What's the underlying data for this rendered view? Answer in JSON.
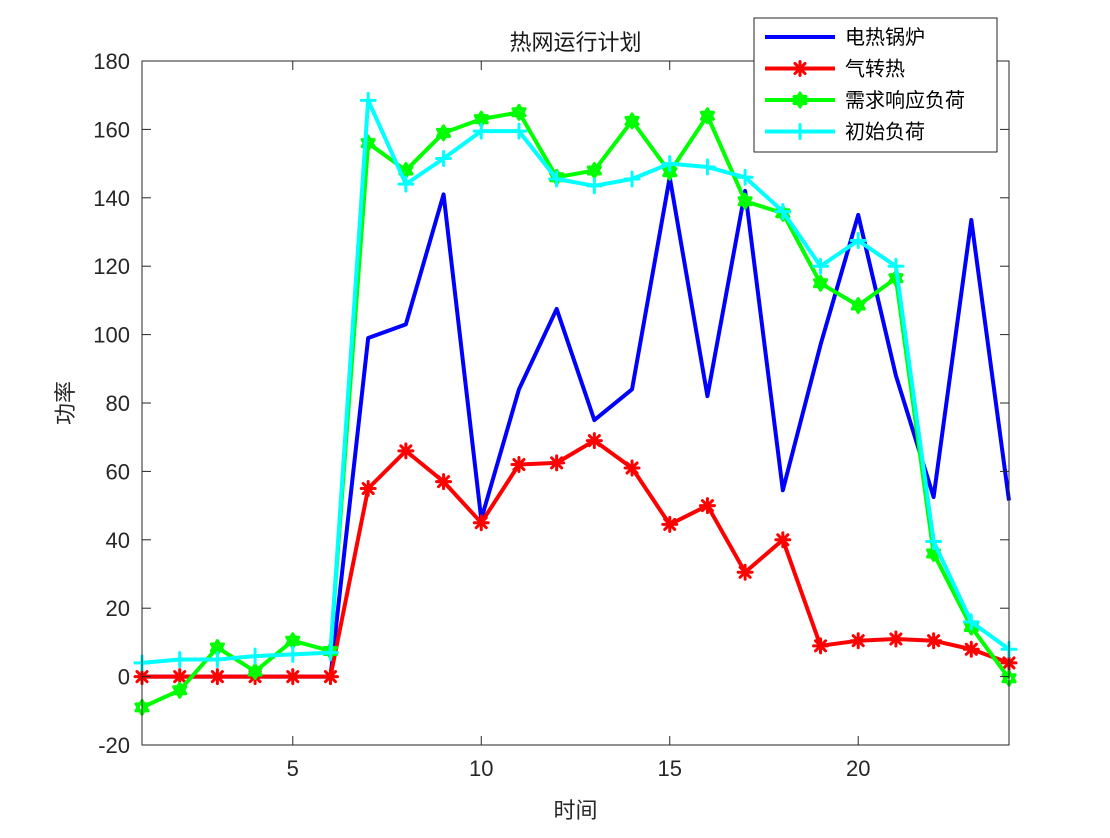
{
  "chart_data": {
    "type": "line",
    "title": "热网运行计划",
    "xlabel": "时间",
    "ylabel": "功率",
    "xlim": [
      1,
      24
    ],
    "ylim": [
      -20,
      180
    ],
    "xticks": [
      5,
      10,
      15,
      20
    ],
    "yticks": [
      -20,
      0,
      20,
      40,
      60,
      80,
      100,
      120,
      140,
      160,
      180
    ],
    "legend_position": "top-right",
    "grid": false,
    "x": [
      1,
      2,
      3,
      4,
      5,
      6,
      7,
      8,
      9,
      10,
      11,
      12,
      13,
      14,
      15,
      16,
      17,
      18,
      19,
      20,
      21,
      22,
      23,
      24
    ],
    "series": [
      {
        "name": "电热锅炉",
        "color": "#0000ff",
        "marker": "none",
        "values": [
          0,
          0,
          0,
          0,
          0,
          0,
          99,
          103,
          141,
          46,
          84,
          107.5,
          75,
          84,
          146,
          82,
          142,
          54.5,
          97,
          135,
          88,
          52.5,
          133.5,
          51.5
        ]
      },
      {
        "name": "气转热",
        "color": "#ff0000",
        "marker": "asterisk",
        "values": [
          0,
          0,
          0,
          0,
          0,
          0,
          55,
          66,
          57,
          45,
          62,
          62.5,
          69,
          61,
          44.5,
          50,
          30.5,
          40,
          9,
          10.5,
          11,
          10.5,
          8,
          4
        ]
      },
      {
        "name": "需求响应负荷",
        "color": "#00ff00",
        "marker": "hexagram",
        "values": [
          -9,
          -4,
          8.5,
          1.5,
          10.5,
          7.5,
          156,
          148,
          159,
          163,
          165,
          146,
          148,
          162.5,
          147.5,
          164,
          139,
          135.5,
          115,
          108.5,
          116.5,
          36,
          14.5,
          -0.5
        ]
      },
      {
        "name": "初始负荷",
        "color": "#00ffff",
        "marker": "plus",
        "values": [
          4,
          5,
          5,
          6,
          6.5,
          7,
          168.5,
          144,
          151.5,
          159.5,
          159.5,
          145.5,
          143.5,
          145.5,
          150,
          149,
          146,
          136,
          120,
          127.5,
          120,
          39.5,
          16,
          8
        ]
      }
    ]
  }
}
